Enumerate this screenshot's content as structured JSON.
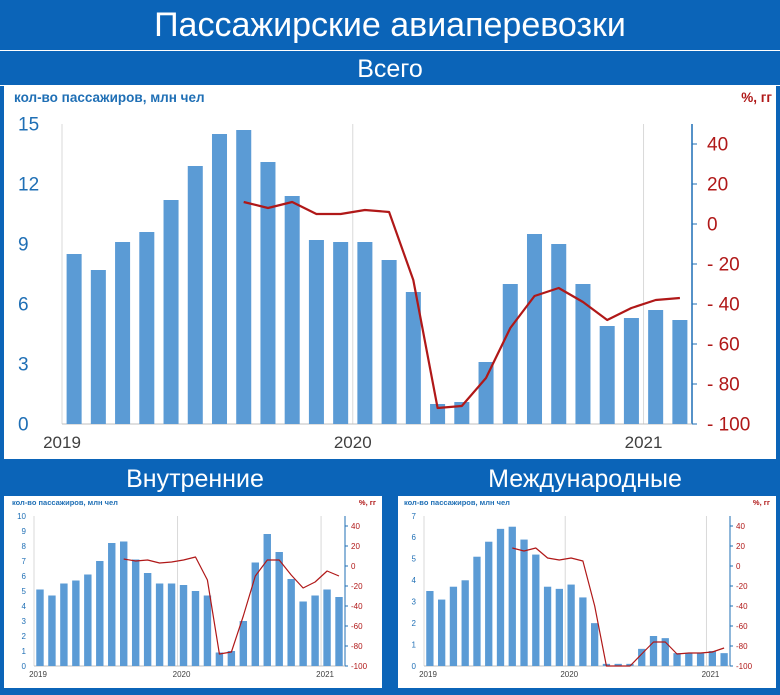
{
  "header": {
    "title": "Пассажирские авиаперевозки",
    "main_section": "Всего",
    "domestic_section": "Внутренние",
    "international_section": "Международные"
  },
  "colors": {
    "bar": "#5b9bd5",
    "line": "#b01818",
    "left_axis": "#1f6fb5",
    "right_axis": "#b01818",
    "banner": "#0b64b8"
  },
  "chart_data": [
    {
      "id": "total",
      "type": "bar",
      "ylabel": "кол-во пассажиров, млн чел",
      "y2label": "%, гг",
      "ylim": [
        0,
        15
      ],
      "yticks": [
        0,
        3,
        6,
        9,
        12,
        15
      ],
      "y2lim": [
        -100,
        50
      ],
      "y2ticks": [
        40,
        20,
        0,
        -20,
        -40,
        -60,
        -80,
        -100
      ],
      "y2tick_labels": [
        "40",
        "20",
        "0",
        "- 20",
        "- 40",
        "- 60",
        "- 80",
        "- 100"
      ],
      "year_labels": [
        {
          "label": "2019",
          "index": 0
        },
        {
          "label": "2020",
          "index": 12
        },
        {
          "label": "2021",
          "index": 24
        }
      ],
      "bars": [
        8.5,
        7.7,
        9.1,
        9.6,
        11.2,
        12.9,
        14.5,
        14.7,
        13.1,
        11.4,
        9.2,
        9.1,
        9.1,
        8.2,
        6.6,
        1.0,
        1.1,
        3.1,
        7.0,
        9.5,
        9.0,
        7.0,
        4.9,
        5.3,
        5.7,
        5.2
      ],
      "line": [
        null,
        null,
        null,
        null,
        null,
        null,
        null,
        11,
        8,
        11,
        5,
        5,
        7,
        6,
        -28,
        -92,
        -91,
        -77,
        -52,
        -36,
        -32,
        -39,
        -48,
        -42,
        -38,
        -37
      ]
    },
    {
      "id": "domestic",
      "type": "bar",
      "ylabel": "кол-во пассажиров, млн чел",
      "y2label": "%, гг",
      "ylim": [
        0,
        10
      ],
      "yticks": [
        0,
        1,
        2,
        3,
        4,
        5,
        6,
        7,
        8,
        9,
        10
      ],
      "y2lim": [
        -100,
        50
      ],
      "y2ticks": [
        40,
        20,
        0,
        -20,
        -40,
        -60,
        -80,
        -100
      ],
      "y2tick_labels": [
        "40",
        "20",
        "0",
        "-20",
        "-40",
        "-60",
        "-80",
        "-100"
      ],
      "year_labels": [
        {
          "label": "2019",
          "index": 0
        },
        {
          "label": "2020",
          "index": 12
        },
        {
          "label": "2021",
          "index": 24
        }
      ],
      "bars": [
        5.1,
        4.7,
        5.5,
        5.7,
        6.1,
        7.0,
        8.2,
        8.3,
        7.1,
        6.2,
        5.5,
        5.5,
        5.4,
        5.0,
        4.7,
        0.9,
        1.0,
        3.0,
        6.9,
        8.8,
        7.6,
        5.8,
        4.3,
        4.7,
        5.1,
        4.6
      ],
      "line": [
        null,
        null,
        null,
        null,
        null,
        null,
        null,
        7,
        5,
        6,
        3,
        4,
        6,
        9,
        -14,
        -88,
        -86,
        -50,
        -10,
        6,
        6,
        -9,
        -22,
        -16,
        -5,
        -10
      ]
    },
    {
      "id": "international",
      "type": "bar",
      "ylabel": "кол-во пассажиров, млн чел",
      "y2label": "%, гг",
      "ylim": [
        0,
        7
      ],
      "yticks": [
        0,
        1,
        2,
        3,
        4,
        5,
        6,
        7
      ],
      "y2lim": [
        -100,
        50
      ],
      "y2ticks": [
        40,
        20,
        0,
        -20,
        -40,
        -60,
        -80,
        -100
      ],
      "y2tick_labels": [
        "40",
        "20",
        "0",
        "-20",
        "-40",
        "-60",
        "-80",
        "-100"
      ],
      "year_labels": [
        {
          "label": "2019",
          "index": 0
        },
        {
          "label": "2020",
          "index": 12
        },
        {
          "label": "2021",
          "index": 24
        }
      ],
      "bars": [
        3.5,
        3.1,
        3.7,
        4.0,
        5.1,
        5.8,
        6.4,
        6.5,
        5.9,
        5.2,
        3.7,
        3.6,
        3.8,
        3.2,
        2.0,
        0.1,
        0.1,
        0.1,
        0.8,
        1.4,
        1.3,
        0.6,
        0.6,
        0.6,
        0.7,
        0.6
      ],
      "line": [
        null,
        null,
        null,
        null,
        null,
        null,
        null,
        18,
        15,
        18,
        8,
        6,
        8,
        5,
        -40,
        -100,
        -100,
        -100,
        -88,
        -76,
        -76,
        -88,
        -87,
        -87,
        -86,
        -82
      ]
    }
  ]
}
